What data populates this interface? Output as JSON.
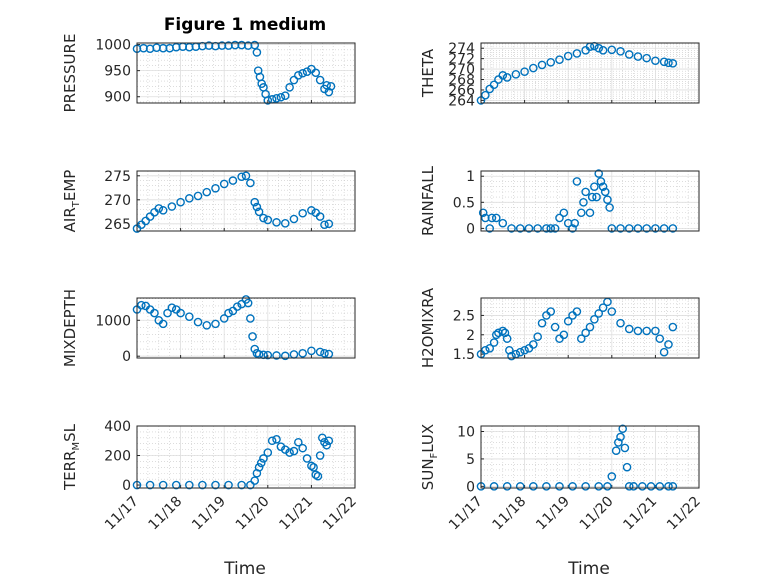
{
  "figure": {
    "title": "Figure 1 medium",
    "marker_color": "#0072BD",
    "xlabel": "Time",
    "xticks": [
      "11/17",
      "11/18",
      "11/19",
      "11/20",
      "11/21",
      "11/22"
    ]
  },
  "chart_data": [
    {
      "type": "scatter",
      "id": "pressure",
      "ylabel_main": "PRESSURE",
      "ylabel_sub": "",
      "ylabel_tail": "",
      "ylim": [
        888,
        1003
      ],
      "yticks": [
        900,
        950,
        1000
      ],
      "xlim": [
        0,
        5
      ],
      "xtick_labels_shown": false,
      "x": [
        0,
        0.15,
        0.3,
        0.45,
        0.6,
        0.75,
        0.9,
        1.05,
        1.2,
        1.35,
        1.5,
        1.65,
        1.8,
        1.95,
        2.1,
        2.25,
        2.4,
        2.55,
        2.7,
        2.75,
        2.78,
        2.82,
        2.86,
        2.9,
        2.95,
        3.0,
        3.1,
        3.2,
        3.3,
        3.4,
        3.5,
        3.6,
        3.7,
        3.8,
        3.9,
        4.0,
        4.1,
        4.2,
        4.3,
        4.35,
        4.4,
        4.45
      ],
      "y": [
        992,
        993,
        992,
        994,
        993,
        993,
        995,
        996,
        995,
        996,
        997,
        998,
        997,
        998,
        998,
        999,
        999,
        998,
        999,
        985,
        950,
        938,
        925,
        918,
        905,
        893,
        895,
        897,
        899,
        902,
        918,
        932,
        941,
        945,
        948,
        953,
        946,
        932,
        915,
        922,
        909,
        920
      ]
    },
    {
      "type": "scatter",
      "id": "theta",
      "ylabel_main": "THETA",
      "ylabel_sub": "",
      "ylabel_tail": "",
      "ylim": [
        263.5,
        275
      ],
      "yticks": [
        264,
        266,
        268,
        270,
        272,
        274
      ],
      "xlim": [
        0,
        5
      ],
      "xtick_labels_shown": false,
      "x": [
        0,
        0.1,
        0.2,
        0.3,
        0.4,
        0.5,
        0.6,
        0.8,
        1.0,
        1.2,
        1.4,
        1.6,
        1.8,
        2.0,
        2.2,
        2.4,
        2.5,
        2.6,
        2.7,
        2.8,
        3.0,
        3.2,
        3.4,
        3.6,
        3.8,
        4.0,
        4.2,
        4.3,
        4.4
      ],
      "y": [
        264,
        265,
        266.2,
        267,
        268,
        268.8,
        268.4,
        269,
        269.5,
        270.2,
        270.8,
        271.3,
        271.8,
        272.5,
        273,
        273.6,
        274.3,
        274.4,
        274,
        273.6,
        273.7,
        273.4,
        272.8,
        272.4,
        272.1,
        271.6,
        271.4,
        271.2,
        271.1
      ]
    },
    {
      "type": "scatter",
      "id": "air_temp",
      "ylabel_main": "AIR",
      "ylabel_sub": "T",
      "ylabel_tail": "EMP",
      "ylim": [
        263.5,
        276
      ],
      "yticks": [
        265,
        270,
        275
      ],
      "xlim": [
        0,
        5
      ],
      "xtick_labels_shown": false,
      "x": [
        0,
        0.1,
        0.2,
        0.3,
        0.4,
        0.5,
        0.6,
        0.8,
        1.0,
        1.2,
        1.4,
        1.6,
        1.8,
        2.0,
        2.2,
        2.4,
        2.5,
        2.6,
        2.7,
        2.75,
        2.8,
        2.9,
        3.0,
        3.2,
        3.4,
        3.6,
        3.8,
        4.0,
        4.1,
        4.2,
        4.3,
        4.4
      ],
      "y": [
        264,
        264.8,
        265.6,
        266.5,
        267.4,
        268.2,
        267.8,
        268.6,
        269.5,
        270.3,
        270.8,
        271.6,
        272.4,
        273.3,
        274,
        274.8,
        275,
        273.5,
        269.5,
        268.5,
        267.5,
        266.2,
        265.8,
        265.3,
        265.1,
        266,
        267.2,
        267.8,
        267.3,
        266.5,
        264.8,
        265
      ]
    },
    {
      "type": "scatter",
      "id": "rainfall",
      "ylabel_main": "RAINFALL",
      "ylabel_sub": "",
      "ylabel_tail": "",
      "ylim": [
        -0.05,
        1.1
      ],
      "yticks": [
        0,
        0.5,
        1
      ],
      "xlim": [
        0,
        5
      ],
      "xtick_labels_shown": false,
      "x": [
        0.05,
        0.1,
        0.2,
        0.25,
        0.35,
        0.5,
        0.7,
        0.9,
        1.1,
        1.3,
        1.5,
        1.6,
        1.7,
        1.8,
        1.9,
        2.0,
        2.1,
        2.15,
        2.2,
        2.3,
        2.35,
        2.4,
        2.5,
        2.55,
        2.6,
        2.65,
        2.7,
        2.75,
        2.8,
        2.85,
        2.9,
        2.95,
        3.0,
        3.2,
        3.4,
        3.6,
        3.8,
        4.0,
        4.2,
        4.4
      ],
      "y": [
        0.3,
        0.2,
        0,
        0.2,
        0.2,
        0.1,
        0,
        0,
        0,
        0,
        0,
        0,
        0,
        0.2,
        0.3,
        0.1,
        0,
        0.1,
        0.9,
        0.3,
        0.5,
        0.7,
        0.3,
        0.6,
        0.8,
        0.6,
        1.05,
        0.9,
        0.8,
        0.7,
        0.55,
        0.4,
        0,
        0,
        0,
        0,
        0,
        0,
        0,
        0
      ]
    },
    {
      "type": "scatter",
      "id": "mixdepth",
      "ylabel_main": "MIXDEPTH",
      "ylabel_sub": "",
      "ylabel_tail": "",
      "ylim": [
        -50,
        1620
      ],
      "yticks": [
        0,
        1000
      ],
      "xlim": [
        0,
        5
      ],
      "xtick_labels_shown": false,
      "x": [
        0,
        0.1,
        0.2,
        0.3,
        0.4,
        0.5,
        0.6,
        0.7,
        0.8,
        0.9,
        1.0,
        1.2,
        1.4,
        1.6,
        1.8,
        2.0,
        2.1,
        2.2,
        2.3,
        2.4,
        2.5,
        2.55,
        2.6,
        2.65,
        2.7,
        2.75,
        2.8,
        2.9,
        3.0,
        3.2,
        3.4,
        3.6,
        3.8,
        4.0,
        4.2,
        4.3,
        4.4
      ],
      "y": [
        1300,
        1420,
        1400,
        1300,
        1200,
        1000,
        900,
        1200,
        1350,
        1300,
        1200,
        1100,
        950,
        860,
        900,
        1050,
        1200,
        1260,
        1380,
        1450,
        1580,
        1480,
        1050,
        550,
        200,
        80,
        50,
        40,
        30,
        20,
        10,
        50,
        80,
        150,
        120,
        80,
        60
      ]
    },
    {
      "type": "scatter",
      "id": "h2omixra",
      "ylabel_main": "H2OMIXRA",
      "ylabel_sub": "",
      "ylabel_tail": "",
      "ylim": [
        1.4,
        2.95
      ],
      "yticks": [
        1.5,
        2,
        2.5
      ],
      "xlim": [
        0,
        5
      ],
      "xtick_labels_shown": false,
      "x": [
        0,
        0.1,
        0.2,
        0.3,
        0.35,
        0.4,
        0.5,
        0.55,
        0.6,
        0.65,
        0.7,
        0.8,
        0.9,
        1.0,
        1.1,
        1.2,
        1.3,
        1.4,
        1.5,
        1.6,
        1.7,
        1.8,
        1.9,
        2.0,
        2.1,
        2.2,
        2.3,
        2.4,
        2.5,
        2.6,
        2.7,
        2.8,
        2.9,
        3.0,
        3.2,
        3.4,
        3.6,
        3.8,
        4.0,
        4.1,
        4.2,
        4.3,
        4.4
      ],
      "y": [
        1.5,
        1.6,
        1.65,
        1.8,
        2.0,
        2.05,
        2.1,
        2.05,
        1.9,
        1.6,
        1.45,
        1.5,
        1.55,
        1.6,
        1.65,
        1.75,
        1.95,
        2.3,
        2.5,
        2.6,
        2.2,
        1.9,
        2.0,
        2.35,
        2.5,
        2.6,
        1.9,
        2.05,
        2.2,
        2.4,
        2.55,
        2.7,
        2.85,
        2.6,
        2.3,
        2.15,
        2.1,
        2.1,
        2.1,
        1.9,
        1.55,
        1.75,
        2.2
      ]
    },
    {
      "type": "scatter",
      "id": "terr_msl",
      "ylabel_main": "TERR",
      "ylabel_sub": "M",
      "ylabel_tail": "SL",
      "ylim": [
        -20,
        400
      ],
      "yticks": [
        0,
        200,
        400
      ],
      "xlim": [
        0,
        5
      ],
      "xtick_labels_shown": true,
      "x": [
        0,
        0.3,
        0.6,
        0.9,
        1.2,
        1.5,
        1.8,
        2.1,
        2.4,
        2.6,
        2.7,
        2.75,
        2.8,
        2.85,
        2.9,
        3.0,
        3.1,
        3.2,
        3.3,
        3.4,
        3.5,
        3.6,
        3.7,
        3.8,
        3.9,
        4.0,
        4.05,
        4.1,
        4.15,
        4.2,
        4.25,
        4.3,
        4.35,
        4.4
      ],
      "y": [
        0,
        0,
        0,
        0,
        0,
        0,
        0,
        0,
        0,
        0,
        30,
        80,
        120,
        150,
        180,
        220,
        300,
        310,
        260,
        240,
        220,
        230,
        290,
        250,
        180,
        130,
        120,
        70,
        60,
        200,
        320,
        290,
        270,
        300
      ]
    },
    {
      "type": "scatter",
      "id": "sun_flux",
      "ylabel_main": "SUN",
      "ylabel_sub": "F",
      "ylabel_tail": "LUX",
      "ylim": [
        -0.3,
        11
      ],
      "yticks": [
        0,
        5,
        10
      ],
      "xlim": [
        0,
        5
      ],
      "xtick_labels_shown": true,
      "x": [
        0,
        0.3,
        0.6,
        0.9,
        1.2,
        1.5,
        1.8,
        2.1,
        2.4,
        2.7,
        2.9,
        3.0,
        3.1,
        3.15,
        3.2,
        3.25,
        3.3,
        3.35,
        3.4,
        3.5,
        3.7,
        3.9,
        4.1,
        4.3,
        4.4
      ],
      "y": [
        0,
        0,
        0,
        0,
        0,
        0,
        0,
        0,
        0,
        0,
        0,
        1.8,
        6.5,
        8,
        9,
        10.5,
        7,
        3.5,
        0,
        0,
        0,
        0,
        0,
        0,
        0
      ]
    }
  ]
}
